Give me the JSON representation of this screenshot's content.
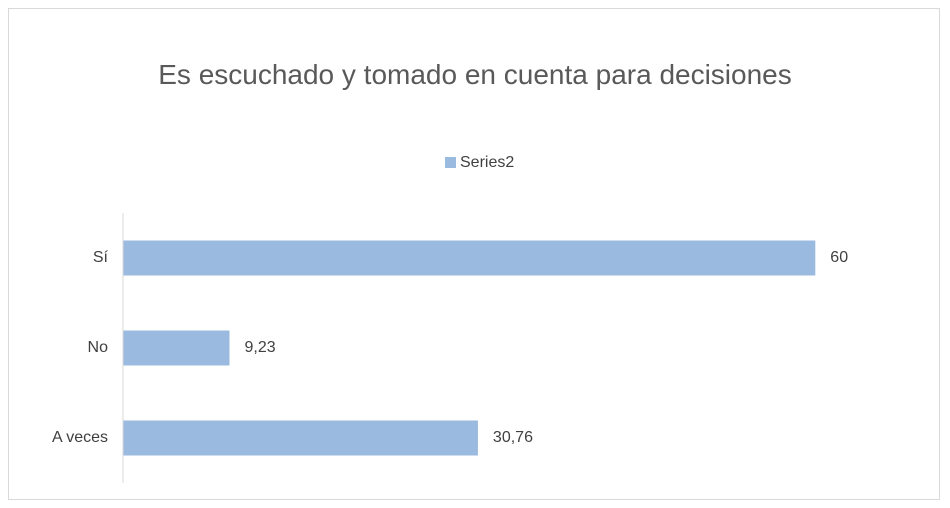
{
  "chart_data": {
    "type": "bar",
    "orientation": "horizontal",
    "title": "Es escuchado y tomado en cuenta para decisiones",
    "categories": [
      "Sí",
      "No",
      "A veces"
    ],
    "series": [
      {
        "name": "Series2",
        "color": "#9bbae0",
        "values": [
          60,
          9.23,
          30.76
        ],
        "value_labels": [
          "60",
          "9,23",
          "30,76"
        ]
      }
    ],
    "xlim": [
      0,
      65
    ],
    "legend": "top"
  }
}
